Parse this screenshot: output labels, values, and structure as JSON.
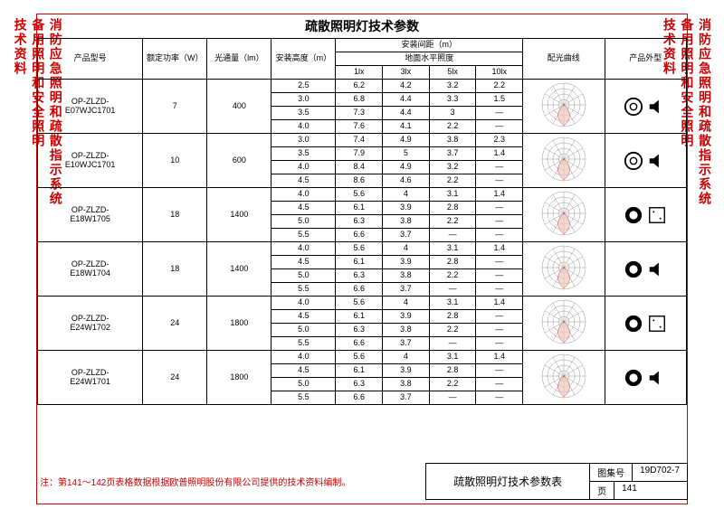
{
  "side_labels": {
    "top": "消防应急照明和疏散指示系统",
    "mid": "备用照明和安全照明",
    "bot": "技术资料"
  },
  "title": "疏散照明灯技术参数",
  "headers": {
    "model": "产品型号",
    "power": "额定功率（W）",
    "lumen": "光通量（lm）",
    "height": "安装高度（m）",
    "spacing_group": "安装间距（m）",
    "floor_lux": "地面水平照度",
    "lux1": "1lx",
    "lux3": "3lx",
    "lux5": "5lx",
    "lux10": "10lx",
    "curve": "配光曲线",
    "shape": "产品外型"
  },
  "products": [
    {
      "model": "OP-ZLZD-E07WJC1701",
      "power": "7",
      "lumen": "400",
      "rows": [
        {
          "h": "2.5",
          "v1": "6.2",
          "v3": "4.2",
          "v5": "3.2",
          "v10": "2.2"
        },
        {
          "h": "3.0",
          "v1": "6.8",
          "v3": "4.4",
          "v5": "3.3",
          "v10": "1.5"
        },
        {
          "h": "3.5",
          "v1": "7.3",
          "v3": "4.4",
          "v5": "3",
          "v10": "—"
        },
        {
          "h": "4.0",
          "v1": "7.6",
          "v3": "4.1",
          "v5": "2.2",
          "v10": "—"
        }
      ],
      "shape": "round-speaker"
    },
    {
      "model": "OP-ZLZD-E10WJC1701",
      "power": "10",
      "lumen": "600",
      "rows": [
        {
          "h": "3.0",
          "v1": "7.4",
          "v3": "4.9",
          "v5": "3.8",
          "v10": "2.3"
        },
        {
          "h": "3.5",
          "v1": "7.9",
          "v3": "5",
          "v5": "3.7",
          "v10": "1.4"
        },
        {
          "h": "4.0",
          "v1": "8.4",
          "v3": "4.9",
          "v5": "3.2",
          "v10": "—"
        },
        {
          "h": "4.5",
          "v1": "8.6",
          "v3": "4.6",
          "v5": "2.2",
          "v10": "—"
        }
      ],
      "shape": "round-speaker"
    },
    {
      "model": "OP-ZLZD-E18W1705",
      "power": "18",
      "lumen": "1400",
      "rows": [
        {
          "h": "4.0",
          "v1": "5.6",
          "v3": "4",
          "v5": "3.1",
          "v10": "1.4"
        },
        {
          "h": "4.5",
          "v1": "6.1",
          "v3": "3.9",
          "v5": "2.8",
          "v10": "—"
        },
        {
          "h": "5.0",
          "v1": "6.3",
          "v3": "3.8",
          "v5": "2.2",
          "v10": "—"
        },
        {
          "h": "5.5",
          "v1": "6.6",
          "v3": "3.7",
          "v5": "—",
          "v10": "—"
        }
      ],
      "shape": "ring-square"
    },
    {
      "model": "OP-ZLZD-E18W1704",
      "power": "18",
      "lumen": "1400",
      "rows": [
        {
          "h": "4.0",
          "v1": "5.6",
          "v3": "4",
          "v5": "3.1",
          "v10": "1.4"
        },
        {
          "h": "4.5",
          "v1": "6.1",
          "v3": "3.9",
          "v5": "2.8",
          "v10": "—"
        },
        {
          "h": "5.0",
          "v1": "6.3",
          "v3": "3.8",
          "v5": "2.2",
          "v10": "—"
        },
        {
          "h": "5.5",
          "v1": "6.6",
          "v3": "3.7",
          "v5": "—",
          "v10": "—"
        }
      ],
      "shape": "ring-speaker"
    },
    {
      "model": "OP-ZLZD-E24W1702",
      "power": "24",
      "lumen": "1800",
      "rows": [
        {
          "h": "4.0",
          "v1": "5.6",
          "v3": "4",
          "v5": "3.1",
          "v10": "1.4"
        },
        {
          "h": "4.5",
          "v1": "6.1",
          "v3": "3.9",
          "v5": "2.8",
          "v10": "—"
        },
        {
          "h": "5.0",
          "v1": "6.3",
          "v3": "3.8",
          "v5": "2.2",
          "v10": "—"
        },
        {
          "h": "5.5",
          "v1": "6.6",
          "v3": "3.7",
          "v5": "—",
          "v10": "—"
        }
      ],
      "shape": "ring-square"
    },
    {
      "model": "OP-ZLZD-E24W1701",
      "power": "24",
      "lumen": "1800",
      "rows": [
        {
          "h": "4.0",
          "v1": "5.6",
          "v3": "4",
          "v5": "3.1",
          "v10": "1.4"
        },
        {
          "h": "4.5",
          "v1": "6.1",
          "v3": "3.9",
          "v5": "2.8",
          "v10": "—"
        },
        {
          "h": "5.0",
          "v1": "6.3",
          "v3": "3.8",
          "v5": "2.2",
          "v10": "—"
        },
        {
          "h": "5.5",
          "v1": "6.6",
          "v3": "3.7",
          "v5": "—",
          "v10": "—"
        }
      ],
      "shape": "ring-speaker"
    }
  ],
  "footer": {
    "note": "注：第141～142页表格数据根据欧普照明股份有限公司提供的技术资料编制。",
    "table_title": "疏散照明灯技术参数表",
    "series_label": "图集号",
    "series_value": "19D702-7",
    "page_label": "页",
    "page_value": "141"
  },
  "colors": {
    "red": "#cc0000",
    "polar_line": "#555555",
    "polar_fill": "#f0c8c0"
  }
}
